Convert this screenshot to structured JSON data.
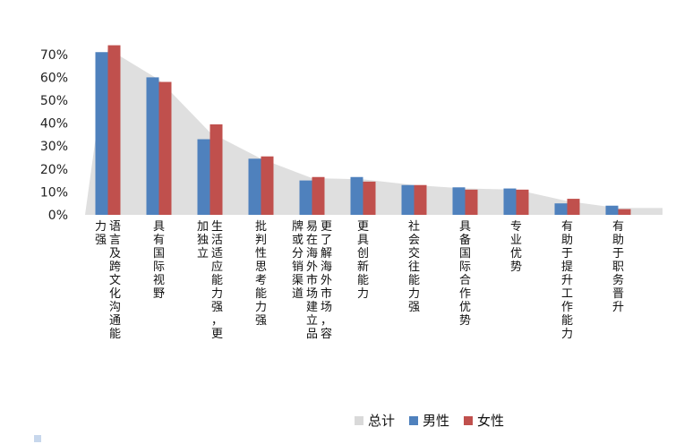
{
  "chart_data": {
    "type": "bar",
    "categories": [
      "语言及跨文化沟通能力强",
      "具有国际视野",
      "生活适应能力强，更加独立",
      "批判性思考能力强",
      "更了解海外市场，容易在海外市场建立品牌或分销渠道",
      "更具创新能力",
      "社会交往能力强",
      "具备国际合作优势",
      "专业优势",
      "有助于提升工作能力",
      "有助于职务晋升"
    ],
    "series": [
      {
        "name": "总计",
        "kind": "area",
        "color": "#d9d9d9",
        "values": [
          72.5,
          59,
          36,
          24.5,
          16,
          15.5,
          13,
          11.5,
          11,
          6,
          3
        ]
      },
      {
        "name": "男性",
        "kind": "bar",
        "color": "#4f81bd",
        "values": [
          71,
          60,
          33,
          24.5,
          15,
          16.5,
          13,
          12,
          11.5,
          5,
          4
        ]
      },
      {
        "name": "女性",
        "kind": "bar",
        "color": "#c0504d",
        "values": [
          74,
          58,
          39.5,
          25.5,
          16.5,
          14.5,
          13,
          11,
          11,
          7,
          2.5
        ]
      }
    ],
    "yticks": [
      "0%",
      "10%",
      "20%",
      "30%",
      "40%",
      "50%",
      "60%",
      "70%"
    ],
    "ylim": [
      0,
      75
    ],
    "grid": false,
    "legend_position": "bottom",
    "title": "",
    "xlabel": "",
    "ylabel": ""
  }
}
